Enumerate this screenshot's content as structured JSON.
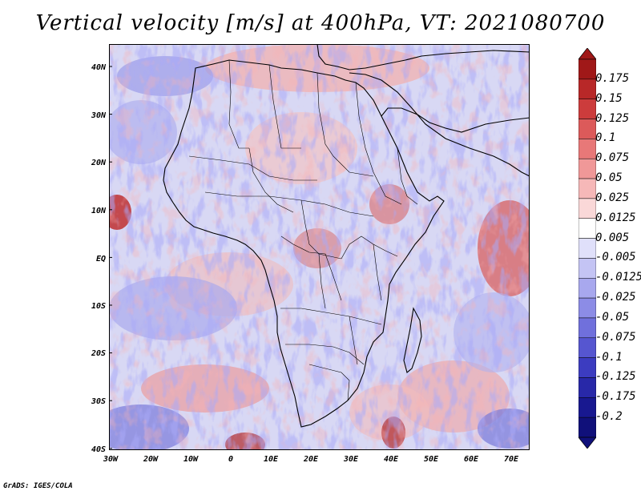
{
  "title": "Vertical velocity [m/s] at 400hPa, VT: 2021080700",
  "credit": "GrADS: IGES/COLA",
  "lat_labels": [
    "40N",
    "30N",
    "20N",
    "10N",
    "EQ",
    "10S",
    "20S",
    "30S",
    "40S"
  ],
  "lon_labels": [
    "30W",
    "20W",
    "10W",
    "0",
    "10E",
    "20E",
    "30E",
    "40E",
    "50E",
    "60E",
    "70E"
  ],
  "colorbar": {
    "labels": [
      "0.175",
      "0.15",
      "0.125",
      "0.1",
      "0.075",
      "0.05",
      "0.025",
      "0.0125",
      "0.005",
      "-0.005",
      "-0.0125",
      "-0.025",
      "-0.05",
      "-0.075",
      "-0.1",
      "-0.125",
      "-0.175",
      "-0.2"
    ],
    "colors": [
      "#a01818",
      "#b82828",
      "#cc3c3c",
      "#dc5a5a",
      "#e87878",
      "#f09898",
      "#f6b8b8",
      "#fad8d8",
      "#ffffff",
      "#e0e0fa",
      "#c4c4f4",
      "#a8a8ee",
      "#8c8ce6",
      "#7070dc",
      "#5656d0",
      "#3c3cc0",
      "#2828a8",
      "#181890",
      "#10107a"
    ]
  },
  "chart_data": {
    "type": "heatmap",
    "variable": "Vertical velocity",
    "units": "m/s",
    "level": "400hPa",
    "valid_time": "2021080700",
    "lon_range": [
      -30,
      75
    ],
    "lat_range": [
      -40,
      45
    ],
    "color_levels": [
      0.175,
      0.15,
      0.125,
      0.1,
      0.075,
      0.05,
      0.025,
      0.0125,
      0.005,
      -0.005,
      -0.0125,
      -0.025,
      -0.05,
      -0.075,
      -0.1,
      -0.125,
      -0.175,
      -0.2
    ]
  }
}
